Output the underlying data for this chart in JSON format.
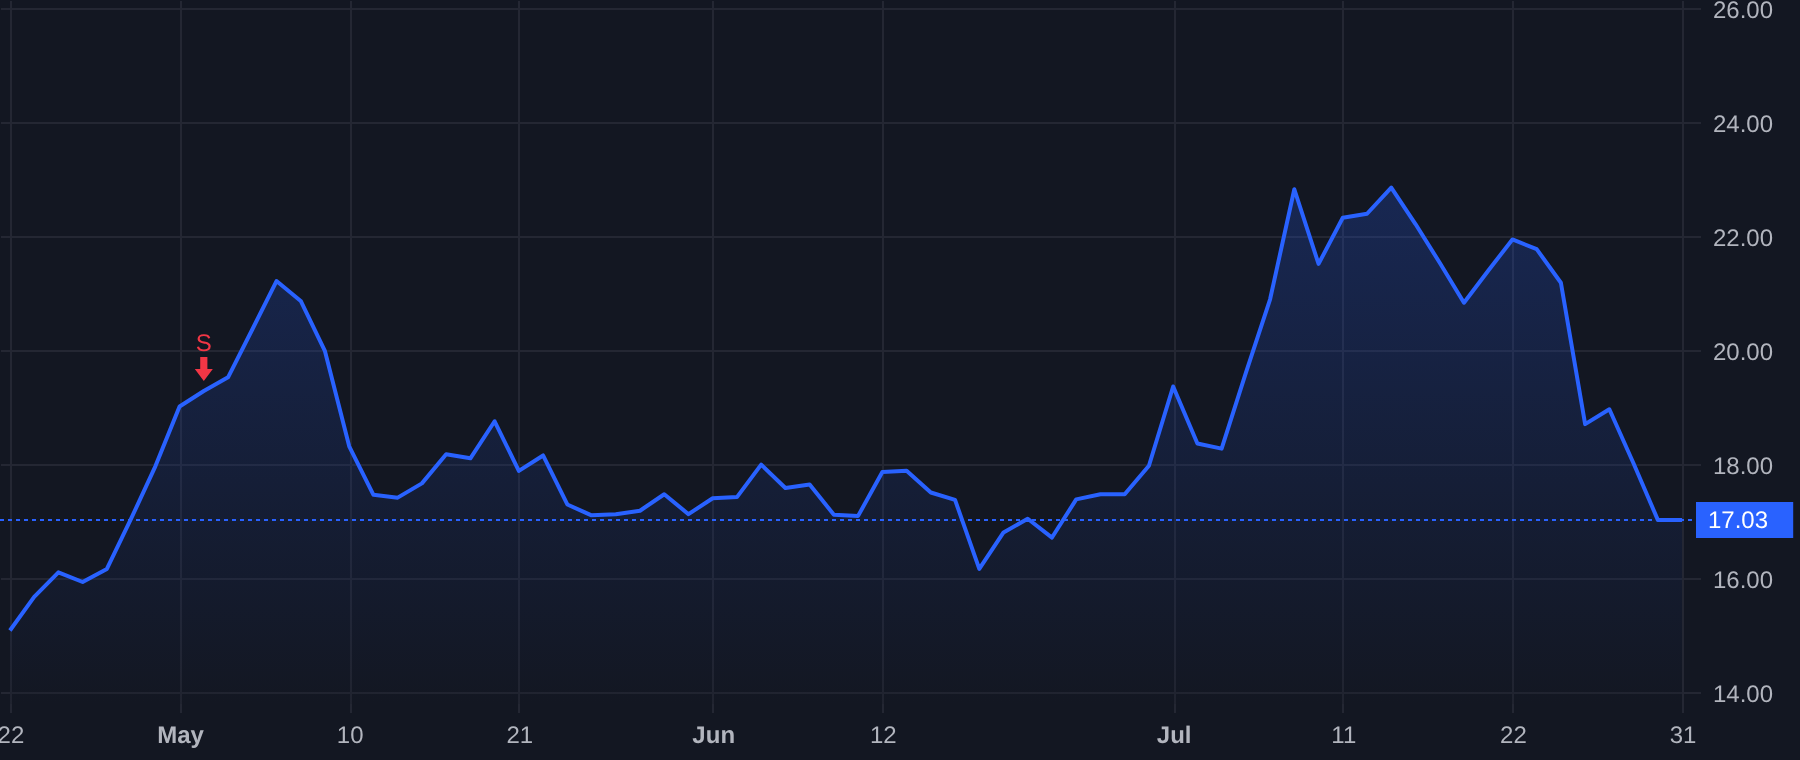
{
  "chart_data": {
    "type": "area",
    "categories": [
      "22",
      null,
      null,
      null,
      null,
      null,
      null,
      "May",
      null,
      null,
      null,
      null,
      null,
      null,
      "10",
      null,
      null,
      null,
      null,
      null,
      null,
      "21",
      null,
      null,
      null,
      null,
      null,
      null,
      null,
      "Jun",
      null,
      null,
      null,
      null,
      null,
      null,
      "12",
      null,
      null,
      null,
      null,
      null,
      null,
      null,
      null,
      null,
      null,
      null,
      "Jul",
      null,
      null,
      null,
      null,
      null,
      null,
      "11",
      null,
      null,
      null,
      null,
      null,
      null,
      "22",
      null,
      null,
      null,
      null,
      null,
      null,
      "31"
    ],
    "series": [
      {
        "color": "#2962ff",
        "values": [
          15.09,
          15.68,
          16.11,
          15.94,
          16.17,
          17.05,
          17.97,
          19.02,
          19.29,
          19.53,
          20.37,
          21.22,
          20.87,
          19.99,
          18.32,
          17.47,
          17.42,
          17.67,
          18.18,
          18.11,
          18.76,
          17.89,
          18.16,
          17.3,
          17.11,
          17.13,
          17.19,
          17.48,
          17.13,
          17.41,
          17.43,
          18.0,
          17.59,
          17.65,
          17.12,
          17.1,
          17.87,
          17.89,
          17.51,
          17.38,
          16.17,
          16.81,
          17.05,
          16.72,
          17.39,
          17.48,
          17.48,
          17.98,
          19.37,
          18.37,
          18.28,
          19.61,
          20.9,
          22.83,
          21.52,
          22.33,
          22.4,
          22.86,
          22.22,
          21.54,
          20.84,
          21.4,
          21.95,
          21.78,
          21.19,
          18.71,
          18.97,
          18.02,
          17.03,
          17.03
        ]
      }
    ],
    "ylim": [
      13.8,
      26.15
    ],
    "yticks": [
      {
        "value": 14,
        "label": "14.00"
      },
      {
        "value": 16,
        "label": "16.00"
      },
      {
        "value": 18,
        "label": "18.00"
      },
      {
        "value": 20,
        "label": "20.00"
      },
      {
        "value": 22,
        "label": "22.00"
      },
      {
        "value": 24,
        "label": "24.00"
      },
      {
        "value": 26,
        "label": "26.00"
      }
    ],
    "grid": true,
    "marker": "none",
    "line_style": "solid",
    "ref_lines": [
      {
        "axis": "y",
        "value": 17.03,
        "label": "17.03",
        "color": "#2962ff",
        "line_style": "dotted"
      }
    ],
    "annotations": [
      {
        "text": "S",
        "y": 19.29
      }
    ]
  }
}
